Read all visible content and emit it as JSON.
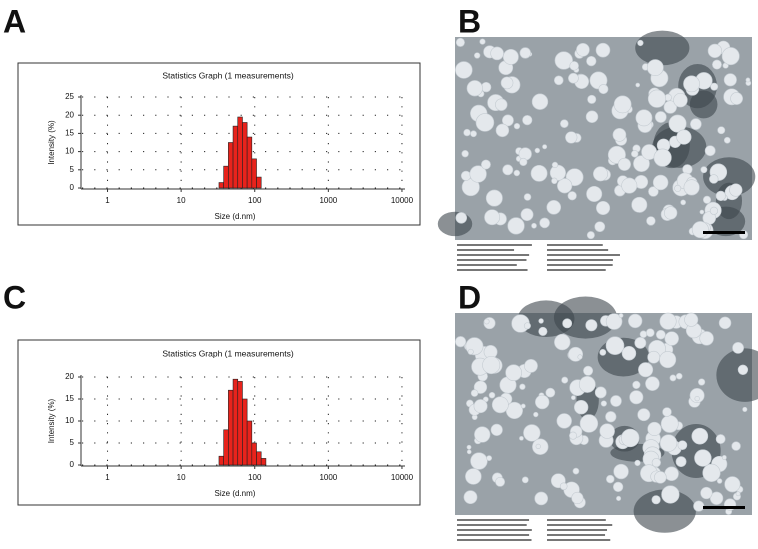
{
  "chart_data": [
    {
      "type": "histogram",
      "panel": "A",
      "title": "Statistics Graph (1 measurements)",
      "xlabel": "Size (d.nm)",
      "ylabel": "Intensity (%)",
      "xscale": "log",
      "bins": [
        32.67,
        37.84,
        43.82,
        50.75,
        58.77,
        68.06,
        78.82,
        91.28,
        105.7,
        122.4
      ],
      "values": [
        1.5,
        6,
        12.5,
        17,
        19.5,
        18,
        14,
        8,
        3
      ],
      "color": "#e8231c",
      "xlim": [
        0.45,
        11000
      ],
      "ylim": [
        0,
        25
      ],
      "xticks": [
        1,
        10,
        100,
        1000,
        10000
      ],
      "yticks": [
        0,
        5,
        10,
        15,
        20,
        25
      ],
      "grid": true
    },
    {
      "type": "histogram",
      "panel": "C",
      "title": "Statistics Graph (1 measurements)",
      "xlabel": "Size (d.nm)",
      "ylabel": "Intensity (%)",
      "xscale": "log",
      "bins": [
        32.67,
        37.84,
        43.82,
        50.75,
        58.77,
        68.06,
        78.82,
        91.28,
        105.7,
        122.4,
        141.8
      ],
      "values": [
        2,
        8,
        17,
        19.5,
        19,
        15,
        10,
        5,
        3,
        1.5
      ],
      "color": "#e8231c",
      "xlim": [
        0.45,
        11000
      ],
      "ylim": [
        0,
        20
      ],
      "xticks": [
        1,
        10,
        100,
        1000,
        10000
      ],
      "yticks": [
        0,
        5,
        10,
        15,
        20
      ],
      "grid": true
    }
  ],
  "images": [
    {
      "label": "B"
    },
    {
      "label": "D"
    }
  ]
}
